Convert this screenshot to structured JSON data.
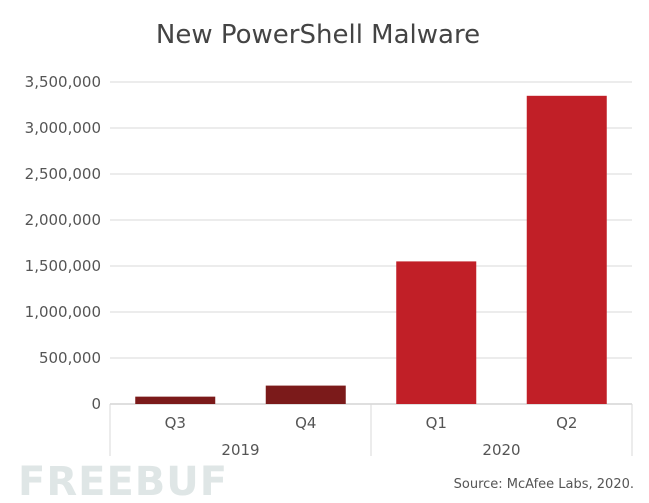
{
  "chart_data": {
    "type": "bar",
    "title": "New PowerShell Malware",
    "xlabel": "",
    "ylabel": "",
    "ylim": [
      0,
      3500000
    ],
    "yticks": [
      "3,500,000",
      "3,000,000",
      "2,500,000",
      "2,000,000",
      "1,500,000",
      "1,000,000",
      "500,000",
      "0"
    ],
    "yticks_values": [
      3500000,
      3000000,
      2500000,
      2000000,
      1500000,
      1000000,
      500000,
      0
    ],
    "categories": [
      "Q3",
      "Q4",
      "Q1",
      "Q2"
    ],
    "values": [
      80000,
      200000,
      1550000,
      3350000
    ],
    "year_groups": [
      {
        "label": "2019",
        "categories": [
          "Q3",
          "Q4"
        ]
      },
      {
        "label": "2020",
        "categories": [
          "Q1",
          "Q2"
        ]
      }
    ],
    "bar_colors": [
      "#7b1a1a",
      "#7b1a1a",
      "#c11f27",
      "#c11f27"
    ],
    "grid": true
  },
  "source": "Source: McAfee Labs, 2020.",
  "watermark": "FREEBUF"
}
